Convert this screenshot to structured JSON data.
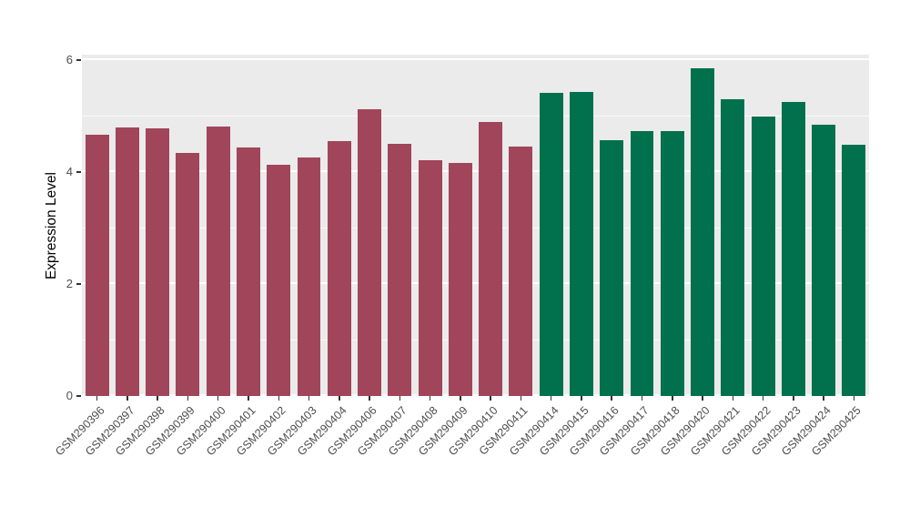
{
  "chart_data": {
    "type": "bar",
    "title": "",
    "xlabel": "",
    "ylabel": "Expression Level",
    "ylim": [
      0,
      6.1
    ],
    "yticks": [
      0,
      2,
      4,
      6
    ],
    "minor_ticks": [
      1,
      3,
      5
    ],
    "grid": "on",
    "legend": "none",
    "panel_background": "#EBEBEB",
    "categories": [
      "GSM290396",
      "GSM290397",
      "GSM290398",
      "GSM290399",
      "GSM290400",
      "GSM290401",
      "GSM290402",
      "GSM290403",
      "GSM290404",
      "GSM290406",
      "GSM290407",
      "GSM290408",
      "GSM290409",
      "GSM290410",
      "GSM290411",
      "GSM290414",
      "GSM290415",
      "GSM290416",
      "GSM290417",
      "GSM290418",
      "GSM290420",
      "GSM290421",
      "GSM290422",
      "GSM290423",
      "GSM290424",
      "GSM290425"
    ],
    "values": [
      4.67,
      4.8,
      4.78,
      4.35,
      4.82,
      4.44,
      4.13,
      4.26,
      4.55,
      5.12,
      4.5,
      4.22,
      4.17,
      4.89,
      4.46,
      5.41,
      5.44,
      4.57,
      4.74,
      4.73,
      5.86,
      5.31,
      5.0,
      5.25,
      4.84,
      4.49
    ],
    "groups": [
      "group1",
      "group1",
      "group1",
      "group1",
      "group1",
      "group1",
      "group1",
      "group1",
      "group1",
      "group1",
      "group1",
      "group1",
      "group1",
      "group1",
      "group1",
      "group2",
      "group2",
      "group2",
      "group2",
      "group2",
      "group2",
      "group2",
      "group2",
      "group2",
      "group2",
      "group2"
    ],
    "group_colors": {
      "group1": "#A0455A",
      "group2": "#00714C"
    }
  }
}
